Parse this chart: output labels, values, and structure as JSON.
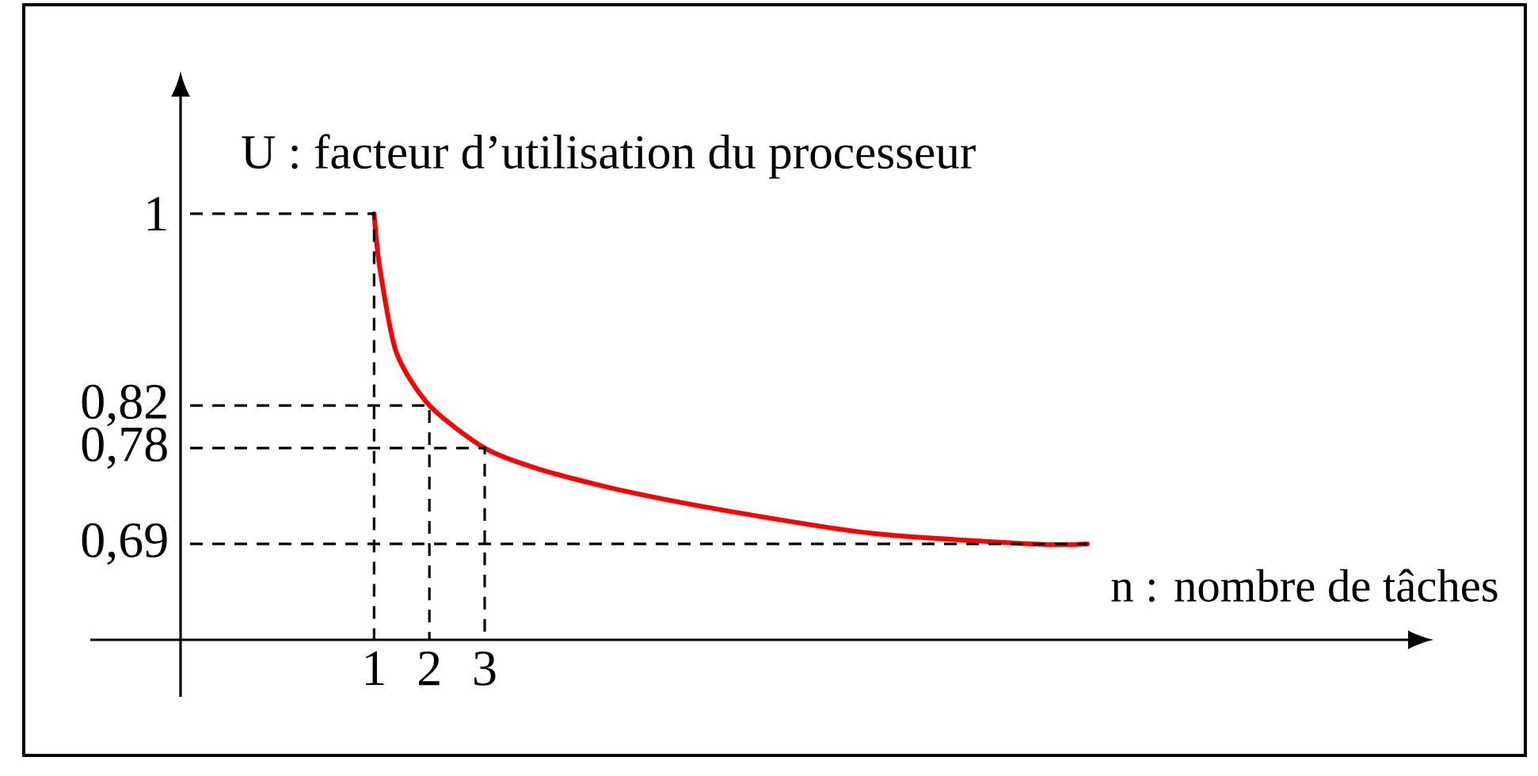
{
  "chart_data": {
    "type": "line",
    "xlabel": "n : nombre de tâches",
    "ylabel": "U : facteur d’utilisation du processeur",
    "xlim": [
      -2.5,
      19.7
    ],
    "ylim": [
      0.6,
      1.11
    ],
    "xticks": [
      1,
      2,
      3
    ],
    "yticks": [
      {
        "value": 0.69,
        "label": "0,69"
      },
      {
        "value": 0.78,
        "label": "0,78"
      },
      {
        "value": 0.82,
        "label": "0,82"
      },
      1
    ],
    "series": [
      {
        "color": "#ff0000",
        "x": [
          1,
          1.1,
          1.4,
          2,
          3,
          4,
          5.5,
          7.5,
          10,
          12.9,
          13.9
        ],
        "values": [
          1,
          0.95,
          0.87,
          0.82,
          0.78,
          0.76,
          0.74,
          0.72,
          0.7,
          0.69,
          0.69
        ]
      },
      {
        "color": "#000000",
        "line_style": "dashed",
        "x": [
          -2.5,
          1,
          1
        ],
        "values": [
          1,
          1,
          0.6
        ]
      },
      {
        "color": "#000000",
        "line_style": "dashed",
        "x": [
          -2.5,
          2,
          2
        ],
        "values": [
          0.82,
          0.82,
          0.6
        ]
      },
      {
        "color": "#000000",
        "line_style": "dashed",
        "x": [
          -2.5,
          3,
          3
        ],
        "values": [
          0.78,
          0.78,
          0.6
        ]
      },
      {
        "color": "#000000",
        "line_style": "dashed",
        "x": [
          -2.5,
          13.9
        ],
        "values": [
          0.69,
          0.69
        ]
      }
    ]
  }
}
